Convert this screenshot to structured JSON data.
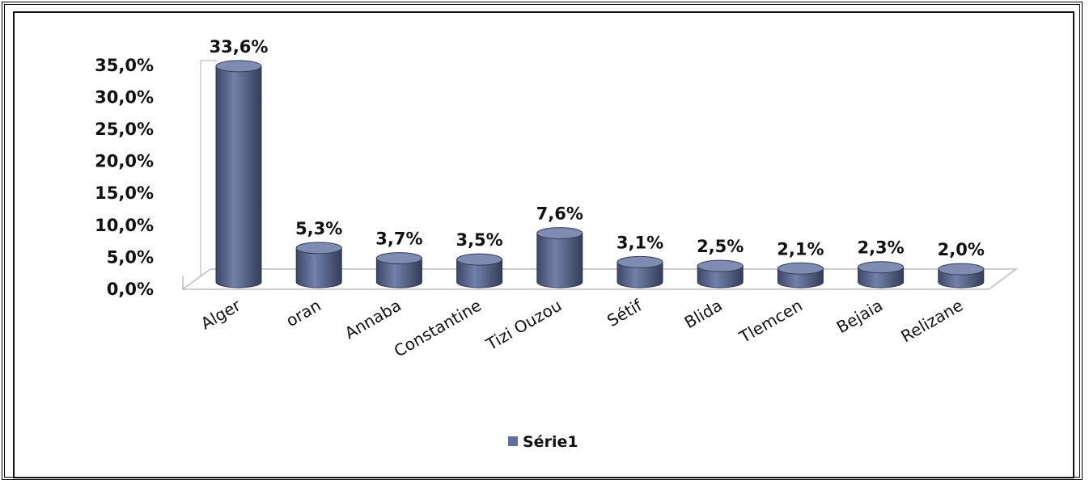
{
  "chart_data": {
    "type": "bar",
    "categories": [
      "Alger",
      "oran",
      "Annaba",
      "Constantine",
      "Tizi Ouzou",
      "Sétif",
      "Blida",
      "Tlemcen",
      "Bejaia",
      "Relizane"
    ],
    "series": [
      {
        "name": "Série1",
        "values": [
          33.6,
          5.3,
          3.7,
          3.5,
          7.6,
          3.1,
          2.5,
          2.1,
          2.3,
          2.0
        ],
        "color": "#5f6f9f"
      }
    ],
    "data_labels": [
      "33,6%",
      "5,3%",
      "3,7%",
      "3,5%",
      "7,6%",
      "3,1%",
      "2,5%",
      "2,1%",
      "2,3%",
      "2,0%"
    ],
    "y_ticks": [
      "0,0%",
      "5,0%",
      "10,0%",
      "15,0%",
      "20,0%",
      "25,0%",
      "30,0%",
      "35,0%"
    ],
    "ylim": [
      0,
      35
    ],
    "title": "",
    "xlabel": "",
    "ylabel": "",
    "legend_position": "bottom",
    "bar_shape": "cylinder",
    "grid": false
  }
}
